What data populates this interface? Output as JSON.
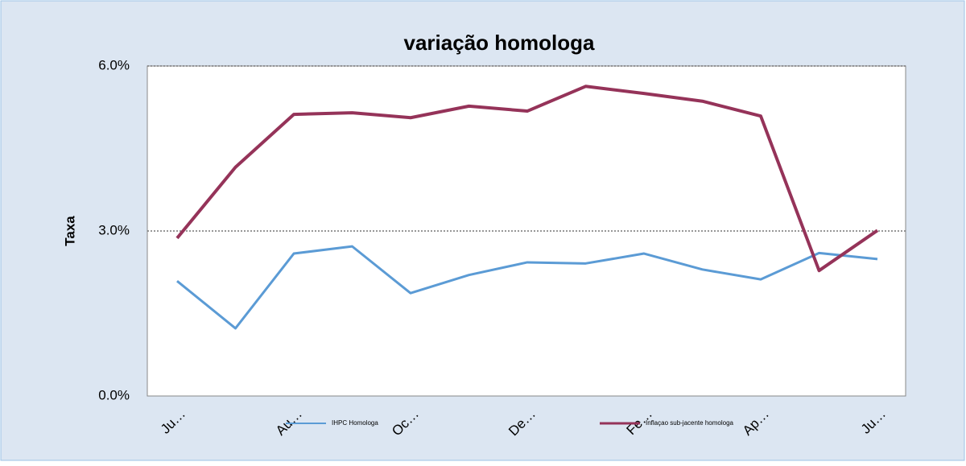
{
  "chart_data": {
    "type": "line",
    "title": "variação homologa",
    "y_label": "Taxa",
    "categories": [
      "Ju…",
      null,
      "Au…",
      null,
      "Oc…",
      null,
      "De…",
      null,
      "Fe…",
      null,
      "Ap…",
      null,
      "Ju…"
    ],
    "series": [
      {
        "name": "IHPC Homologa",
        "color": "#5b9bd5",
        "values": [
          2.09,
          1.23,
          2.59,
          2.72,
          1.87,
          2.2,
          2.43,
          2.41,
          2.59,
          2.3,
          2.12,
          2.6,
          2.49
        ]
      },
      {
        "name": "Inflaçao sub-jacente homologa",
        "color": "#953359",
        "values": [
          2.87,
          4.16,
          5.12,
          5.15,
          5.06,
          5.27,
          5.18,
          5.63,
          5.5,
          5.36,
          5.09,
          2.28,
          3.01
        ]
      }
    ],
    "ylim": [
      0,
      6
    ],
    "yticks": [
      {
        "value": 0,
        "label": "0.0%"
      },
      {
        "value": 3,
        "label": "3.0%"
      },
      {
        "value": 6,
        "label": "6.0%"
      }
    ],
    "grid": true,
    "legend": "bottom"
  }
}
